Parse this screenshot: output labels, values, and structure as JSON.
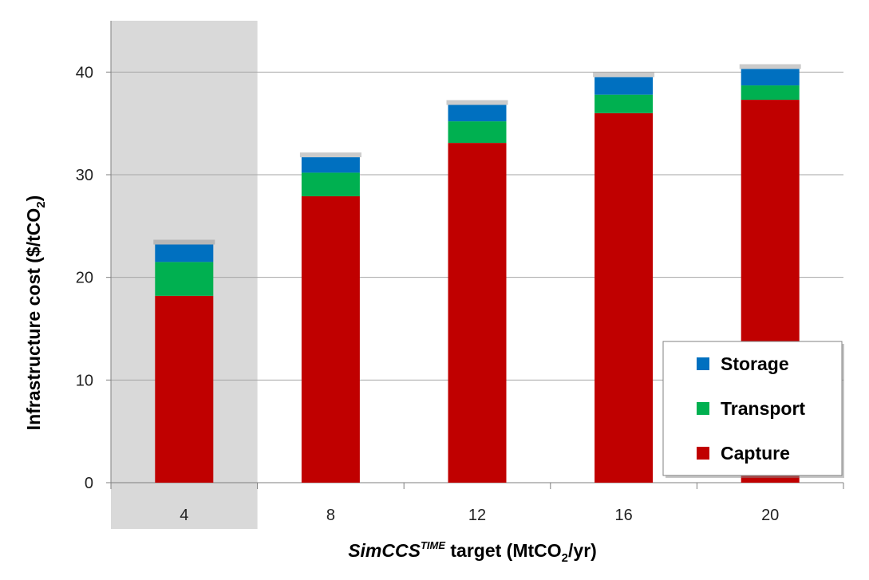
{
  "chart_data": {
    "type": "bar",
    "stacked": true,
    "categories": [
      "4",
      "8",
      "12",
      "16",
      "20"
    ],
    "highlighted_category": "4",
    "series": [
      {
        "name": "Capture",
        "color": "#c00000",
        "values": [
          18.2,
          27.9,
          33.1,
          36.0,
          37.3
        ]
      },
      {
        "name": "Transport",
        "color": "#00b050",
        "values": [
          3.3,
          2.3,
          2.1,
          1.8,
          1.4
        ]
      },
      {
        "name": "Storage",
        "color": "#0070c0",
        "values": [
          1.7,
          1.5,
          1.6,
          1.7,
          1.6
        ]
      }
    ],
    "ylim": [
      0,
      45
    ],
    "yticks": [
      0,
      10,
      20,
      30,
      40
    ],
    "grid": true,
    "legend_position": "bottom-right",
    "legend_order": [
      "Storage",
      "Transport",
      "Capture"
    ],
    "ylabel": {
      "text": "Infrastructure cost ($/tCO",
      "sub": "2",
      "tail": ")"
    },
    "xlabel": {
      "italic": "SimCCS",
      "sup": "TIME",
      "text": " target (MtCO",
      "sub": "2",
      "tail": "/yr)"
    },
    "colors": {
      "highlight_band": "#d9d9d9",
      "grid": "#a6a6a6",
      "axis": "#7f7f7f"
    }
  }
}
